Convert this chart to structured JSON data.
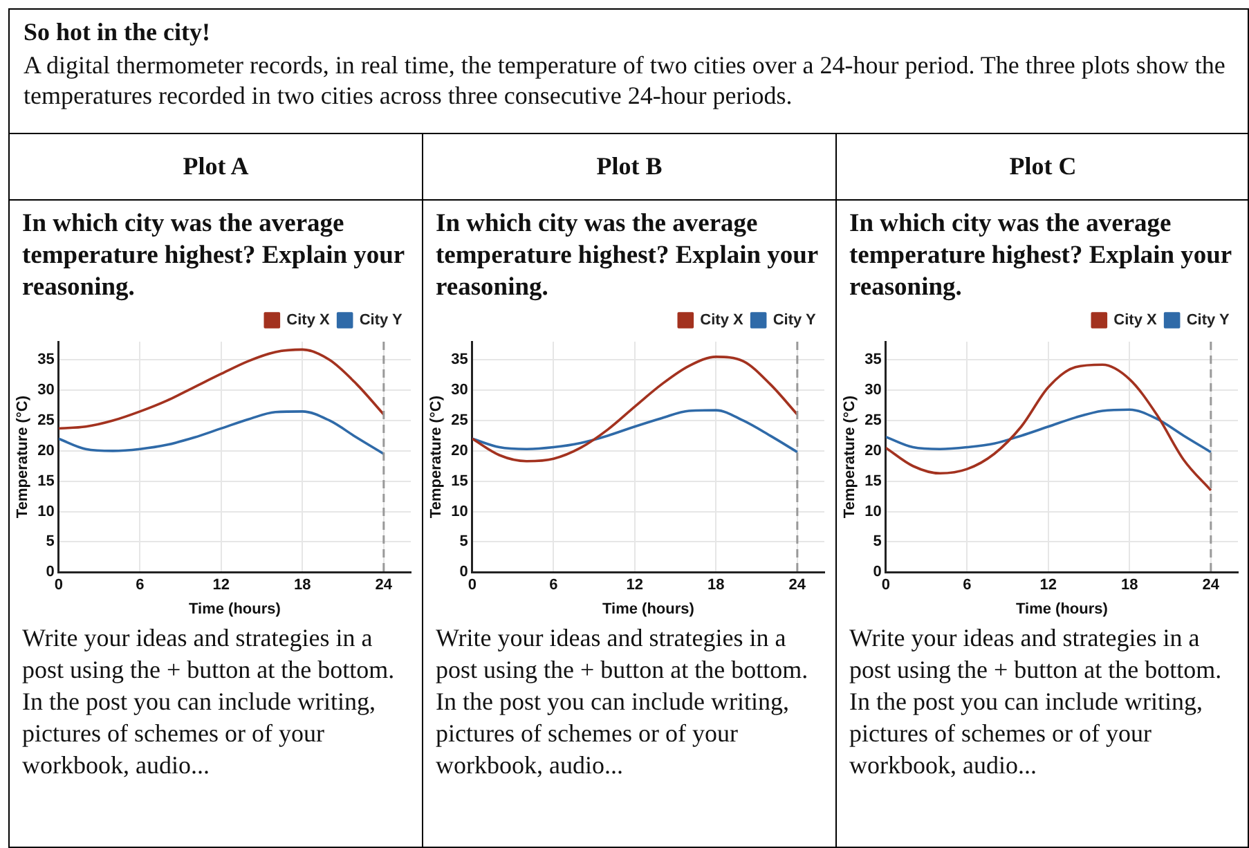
{
  "chart_data": [
    {
      "type": "other",
      "title": "So hot in the city!",
      "subtitle": "A digital thermometer records, in real time, the temperature of two cities over a 24-hour period. The three plots show the temperatures recorded in two cities across three consecutive 24-hour periods."
    },
    {
      "type": "line",
      "title": "Plot A",
      "subtitle": "In which city was the average temperature highest?  Explain your reasoning.",
      "xlabel": "Time (hours)",
      "ylabel": "Temperature (°C)",
      "x": [
        0,
        2,
        4,
        6,
        8,
        10,
        12,
        14,
        16,
        18,
        20,
        22,
        24
      ],
      "xlim": [
        0,
        26
      ],
      "xticks": [
        0,
        6,
        12,
        18,
        24
      ],
      "ylim": [
        0,
        38
      ],
      "yticks": [
        0,
        5,
        10,
        15,
        20,
        25,
        30,
        35
      ],
      "grid": true,
      "legend": "top right",
      "marker": "none",
      "line_style": "solid",
      "series": [
        {
          "name": "City X",
          "color": "#a3321f",
          "values": [
            23.7,
            24,
            25,
            26.5,
            28.3,
            30.5,
            32.7,
            34.8,
            36.3,
            36.7,
            35,
            31,
            26
          ]
        },
        {
          "name": "City Y",
          "color": "#2f6aa8",
          "values": [
            22,
            20.3,
            20,
            20.3,
            21,
            22.2,
            23.7,
            25.2,
            26.4,
            26.5,
            25,
            22.2,
            19.5
          ]
        }
      ],
      "ref_lines": [
        {
          "axis": "x",
          "value": 24,
          "color": "#999999",
          "line_style": "dashed"
        }
      ],
      "annotations": [
        "Write your ideas and strategies in a post using the + button at the bottom. In the post you can include writing, pictures of schemes or of your workbook, audio..."
      ]
    },
    {
      "type": "line",
      "title": "Plot B",
      "subtitle": "In which city was the average temperature highest?  Explain your reasoning.",
      "xlabel": "Time (hours)",
      "ylabel": "Temperature (°C)",
      "x": [
        0,
        2,
        4,
        6,
        8,
        10,
        12,
        14,
        16,
        18,
        20,
        22,
        24
      ],
      "xlim": [
        0,
        26
      ],
      "xticks": [
        0,
        6,
        12,
        18,
        24
      ],
      "ylim": [
        0,
        38
      ],
      "yticks": [
        0,
        5,
        10,
        15,
        20,
        25,
        30,
        35
      ],
      "grid": true,
      "legend": "top right",
      "marker": "none",
      "line_style": "solid",
      "series": [
        {
          "name": "City X",
          "color": "#a3321f",
          "values": [
            22,
            19.3,
            18.3,
            18.7,
            20.5,
            23.5,
            27.3,
            31,
            34,
            35.5,
            34.8,
            31,
            26
          ]
        },
        {
          "name": "City Y",
          "color": "#2f6aa8",
          "values": [
            22,
            20.6,
            20.3,
            20.6,
            21.3,
            22.5,
            24,
            25.4,
            26.6,
            26.7,
            25,
            22.5,
            19.8
          ]
        }
      ],
      "ref_lines": [
        {
          "axis": "x",
          "value": 24,
          "color": "#999999",
          "line_style": "dashed"
        }
      ],
      "annotations": [
        "Write your ideas and strategies in a post using the + button at the bottom. In the post you can include writing, pictures of schemes or of your workbook, audio..."
      ]
    },
    {
      "type": "line",
      "title": "Plot C",
      "subtitle": "In which city was the average temperature highest?  Explain your reasoning.",
      "xlabel": "Time (hours)",
      "ylabel": "Temperature (°C)",
      "x": [
        0,
        2,
        4,
        6,
        8,
        10,
        12,
        14,
        16,
        18,
        20,
        22,
        24
      ],
      "xlim": [
        0,
        26
      ],
      "xticks": [
        0,
        6,
        12,
        18,
        24
      ],
      "ylim": [
        0,
        38
      ],
      "yticks": [
        0,
        5,
        10,
        15,
        20,
        25,
        30,
        35
      ],
      "grid": true,
      "legend": "top right",
      "marker": "none",
      "line_style": "solid",
      "series": [
        {
          "name": "City X",
          "color": "#a3321f",
          "values": [
            20.5,
            17.5,
            16.3,
            17,
            19.5,
            24,
            30.5,
            33.8,
            34.2,
            31.8,
            26,
            18.5,
            13.5
          ]
        },
        {
          "name": "City Y",
          "color": "#2f6aa8",
          "values": [
            22.3,
            20.6,
            20.3,
            20.6,
            21.2,
            22.5,
            24,
            25.5,
            26.6,
            26.8,
            25.3,
            22.5,
            19.8
          ]
        }
      ],
      "ref_lines": [
        {
          "axis": "x",
          "value": 24,
          "color": "#999999",
          "line_style": "dashed"
        }
      ],
      "annotations": [
        "Write your ideas and strategies in a post using the + button at the bottom. In the post you can include writing, pictures of schemes or of your workbook, audio..."
      ]
    }
  ]
}
